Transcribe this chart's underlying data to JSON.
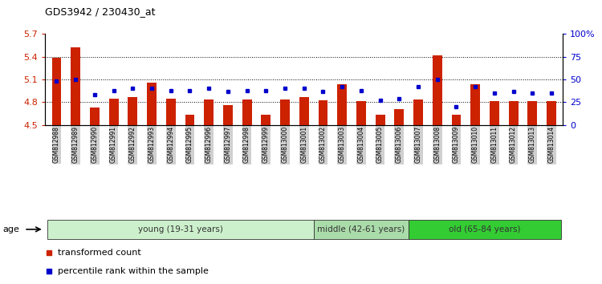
{
  "title": "GDS3942 / 230430_at",
  "samples": [
    "GSM812988",
    "GSM812989",
    "GSM812990",
    "GSM812991",
    "GSM812992",
    "GSM812993",
    "GSM812994",
    "GSM812995",
    "GSM812996",
    "GSM812997",
    "GSM812998",
    "GSM812999",
    "GSM813000",
    "GSM813001",
    "GSM813002",
    "GSM813003",
    "GSM813004",
    "GSM813005",
    "GSM813006",
    "GSM813007",
    "GSM813008",
    "GSM813009",
    "GSM813010",
    "GSM813011",
    "GSM813012",
    "GSM813013",
    "GSM813014"
  ],
  "bar_values": [
    5.39,
    5.52,
    4.73,
    4.85,
    4.87,
    5.06,
    4.85,
    4.63,
    4.84,
    4.76,
    4.84,
    4.63,
    4.84,
    4.87,
    4.83,
    5.04,
    4.82,
    4.63,
    4.71,
    4.84,
    5.42,
    4.64,
    5.04,
    4.82,
    4.82,
    4.82,
    4.82
  ],
  "percentile_values": [
    48,
    50,
    33,
    38,
    40,
    40,
    38,
    38,
    40,
    37,
    38,
    38,
    40,
    40,
    37,
    42,
    38,
    27,
    29,
    42,
    50,
    20,
    42,
    35,
    37,
    35,
    35
  ],
  "bar_color": "#cc2200",
  "dot_color": "#0000cc",
  "ymin": 4.5,
  "ymax": 5.7,
  "yticks": [
    4.5,
    4.8,
    5.1,
    5.4,
    5.7
  ],
  "y2min": 0,
  "y2max": 100,
  "y2ticks": [
    0,
    25,
    50,
    75,
    100
  ],
  "y2ticklabels": [
    "0",
    "25",
    "50",
    "75",
    "100%"
  ],
  "groups": [
    {
      "label": "young (19-31 years)",
      "start": 0,
      "end": 14,
      "color": "#ccf0cc"
    },
    {
      "label": "middle (42-61 years)",
      "start": 14,
      "end": 19,
      "color": "#aadcaa"
    },
    {
      "label": "old (65-84 years)",
      "start": 19,
      "end": 27,
      "color": "#33cc33"
    }
  ],
  "legend_items": [
    {
      "label": "transformed count",
      "color": "#cc2200"
    },
    {
      "label": "percentile rank within the sample",
      "color": "#0000cc"
    }
  ],
  "age_label": "age"
}
